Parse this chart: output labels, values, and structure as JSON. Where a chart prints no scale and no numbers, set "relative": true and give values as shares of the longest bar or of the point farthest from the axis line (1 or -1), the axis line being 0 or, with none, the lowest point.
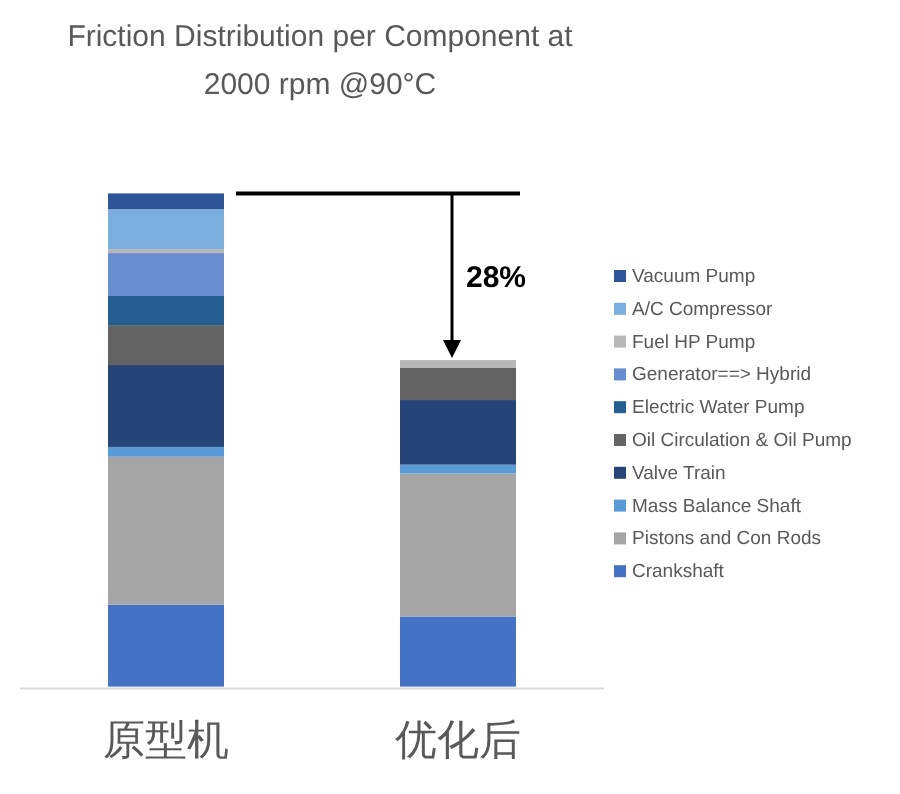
{
  "chart_data": {
    "type": "bar",
    "title": "Friction Distribution per Component at 2000 rpm  @90°C",
    "categories": [
      "原型机",
      "优化后"
    ],
    "stacked": true,
    "relative": true,
    "legend": "right",
    "annotations": [
      "28%"
    ],
    "series": [
      {
        "name": "Crankshaft",
        "color": "#4472c4",
        "values": [
          0.166,
          0.142
        ]
      },
      {
        "name": "Pistons and Con Rods",
        "color": "#a5a5a5",
        "values": [
          0.3,
          0.29
        ]
      },
      {
        "name": "Mass Balance Shaft",
        "color": "#5b9bd5",
        "values": [
          0.02,
          0.018
        ]
      },
      {
        "name": "Valve Train",
        "color": "#264478",
        "values": [
          0.166,
          0.131
        ]
      },
      {
        "name": "Oil Circulation & Oil Pump",
        "color": "#636363",
        "values": [
          0.081,
          0.065
        ]
      },
      {
        "name": "Electric Water Pump",
        "color": "#255e91",
        "values": [
          0.059,
          0
        ]
      },
      {
        "name": "Generator==> Hybrid",
        "color": "#698ed0",
        "values": [
          0.087,
          0
        ]
      },
      {
        "name": "Fuel HP Pump",
        "color": "#b7b7b7",
        "values": [
          0.008,
          0.016
        ]
      },
      {
        "name": "A/C Compressor",
        "color": "#7cafdd",
        "values": [
          0.081,
          0
        ]
      },
      {
        "name": "Vacuum Pump",
        "color": "#2e5597",
        "values": [
          0.032,
          0
        ]
      }
    ]
  }
}
